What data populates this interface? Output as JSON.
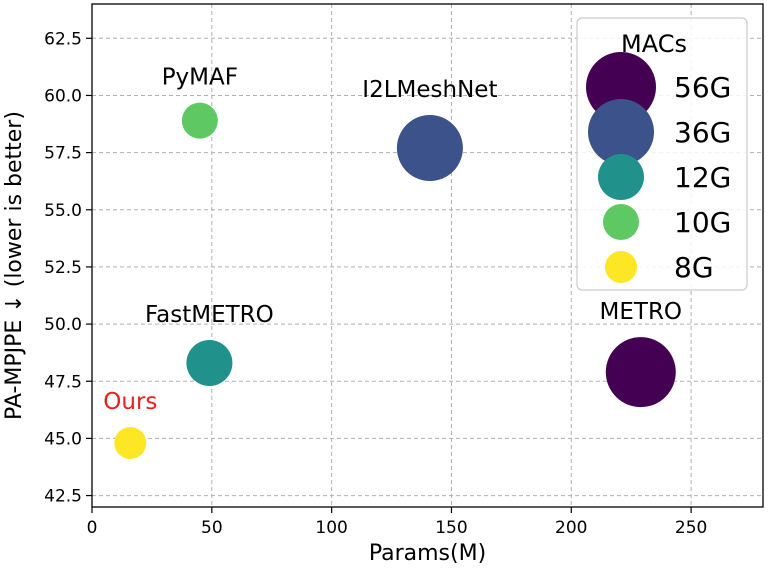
{
  "chart_data": {
    "type": "scatter",
    "title": "",
    "xlabel": "Params(M)",
    "ylabel": "PA-MPJPE ↓  (lower is better)",
    "xlim": [
      0,
      280
    ],
    "ylim": [
      42,
      64
    ],
    "xticks": [
      0,
      50,
      100,
      150,
      200,
      250
    ],
    "yticks": [
      42.5,
      45.0,
      47.5,
      50.0,
      52.5,
      55.0,
      57.5,
      60.0,
      62.5
    ],
    "grid": true,
    "points": [
      {
        "name": "PyMAF",
        "x": 45,
        "y": 58.9,
        "macs": "10G",
        "color": "#5ec962",
        "label_color": "#000000"
      },
      {
        "name": "I2LMeshNet",
        "x": 141,
        "y": 57.7,
        "macs": "36G",
        "color": "#3b528b",
        "label_color": "#000000"
      },
      {
        "name": "FastMETRO",
        "x": 49,
        "y": 48.3,
        "macs": "12G",
        "color": "#21918c",
        "label_color": "#000000"
      },
      {
        "name": "METRO",
        "x": 229,
        "y": 47.9,
        "macs": "56G",
        "color": "#440154",
        "label_color": "#000000"
      },
      {
        "name": "Ours",
        "x": 16,
        "y": 44.8,
        "macs": "8G",
        "color": "#fde725",
        "label_color": "#e8201c"
      }
    ],
    "legend": {
      "title": "MACs",
      "placement": "top-right",
      "entries": [
        {
          "label": "56G",
          "color": "#440154"
        },
        {
          "label": "36G",
          "color": "#3b528b"
        },
        {
          "label": "12G",
          "color": "#21918c"
        },
        {
          "label": "10G",
          "color": "#5ec962"
        },
        {
          "label": "8G",
          "color": "#fde725"
        }
      ]
    }
  }
}
